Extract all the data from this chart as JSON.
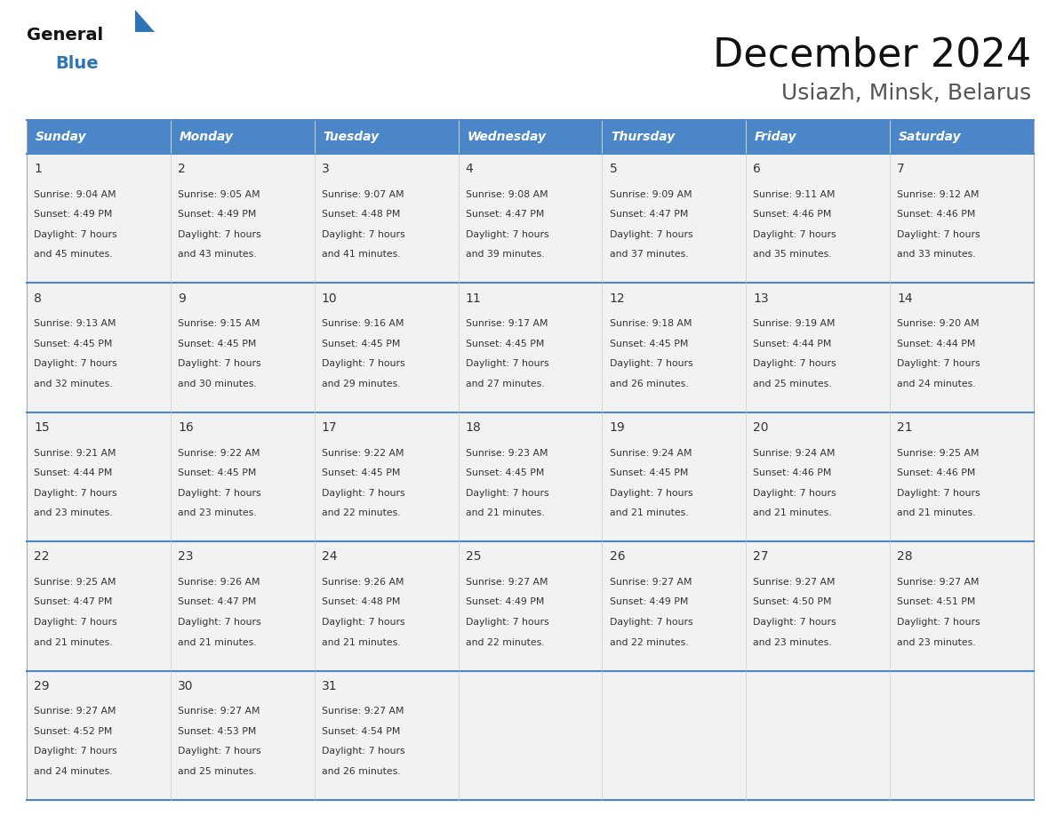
{
  "title": "December 2024",
  "subtitle": "Usiazh, Minsk, Belarus",
  "days_of_week": [
    "Sunday",
    "Monday",
    "Tuesday",
    "Wednesday",
    "Thursday",
    "Friday",
    "Saturday"
  ],
  "header_bg": "#4A86C8",
  "header_text": "#FFFFFF",
  "cell_bg_light": "#F2F2F2",
  "cell_bg_white": "#FFFFFF",
  "cell_border": "#AAAAAA",
  "day_num_color": "#333333",
  "info_text_color": "#333333",
  "title_color": "#111111",
  "subtitle_color": "#555555",
  "logo_general_color": "#111111",
  "logo_blue_color": "#2E75B6",
  "divider_color": "#4A86C8",
  "calendar_data": [
    [
      {
        "day": 1,
        "sunrise": "9:04 AM",
        "sunset": "4:49 PM",
        "daylight": "7 hours and 45 minutes."
      },
      {
        "day": 2,
        "sunrise": "9:05 AM",
        "sunset": "4:49 PM",
        "daylight": "7 hours and 43 minutes."
      },
      {
        "day": 3,
        "sunrise": "9:07 AM",
        "sunset": "4:48 PM",
        "daylight": "7 hours and 41 minutes."
      },
      {
        "day": 4,
        "sunrise": "9:08 AM",
        "sunset": "4:47 PM",
        "daylight": "7 hours and 39 minutes."
      },
      {
        "day": 5,
        "sunrise": "9:09 AM",
        "sunset": "4:47 PM",
        "daylight": "7 hours and 37 minutes."
      },
      {
        "day": 6,
        "sunrise": "9:11 AM",
        "sunset": "4:46 PM",
        "daylight": "7 hours and 35 minutes."
      },
      {
        "day": 7,
        "sunrise": "9:12 AM",
        "sunset": "4:46 PM",
        "daylight": "7 hours and 33 minutes."
      }
    ],
    [
      {
        "day": 8,
        "sunrise": "9:13 AM",
        "sunset": "4:45 PM",
        "daylight": "7 hours and 32 minutes."
      },
      {
        "day": 9,
        "sunrise": "9:15 AM",
        "sunset": "4:45 PM",
        "daylight": "7 hours and 30 minutes."
      },
      {
        "day": 10,
        "sunrise": "9:16 AM",
        "sunset": "4:45 PM",
        "daylight": "7 hours and 29 minutes."
      },
      {
        "day": 11,
        "sunrise": "9:17 AM",
        "sunset": "4:45 PM",
        "daylight": "7 hours and 27 minutes."
      },
      {
        "day": 12,
        "sunrise": "9:18 AM",
        "sunset": "4:45 PM",
        "daylight": "7 hours and 26 minutes."
      },
      {
        "day": 13,
        "sunrise": "9:19 AM",
        "sunset": "4:44 PM",
        "daylight": "7 hours and 25 minutes."
      },
      {
        "day": 14,
        "sunrise": "9:20 AM",
        "sunset": "4:44 PM",
        "daylight": "7 hours and 24 minutes."
      }
    ],
    [
      {
        "day": 15,
        "sunrise": "9:21 AM",
        "sunset": "4:44 PM",
        "daylight": "7 hours and 23 minutes."
      },
      {
        "day": 16,
        "sunrise": "9:22 AM",
        "sunset": "4:45 PM",
        "daylight": "7 hours and 23 minutes."
      },
      {
        "day": 17,
        "sunrise": "9:22 AM",
        "sunset": "4:45 PM",
        "daylight": "7 hours and 22 minutes."
      },
      {
        "day": 18,
        "sunrise": "9:23 AM",
        "sunset": "4:45 PM",
        "daylight": "7 hours and 21 minutes."
      },
      {
        "day": 19,
        "sunrise": "9:24 AM",
        "sunset": "4:45 PM",
        "daylight": "7 hours and 21 minutes."
      },
      {
        "day": 20,
        "sunrise": "9:24 AM",
        "sunset": "4:46 PM",
        "daylight": "7 hours and 21 minutes."
      },
      {
        "day": 21,
        "sunrise": "9:25 AM",
        "sunset": "4:46 PM",
        "daylight": "7 hours and 21 minutes."
      }
    ],
    [
      {
        "day": 22,
        "sunrise": "9:25 AM",
        "sunset": "4:47 PM",
        "daylight": "7 hours and 21 minutes."
      },
      {
        "day": 23,
        "sunrise": "9:26 AM",
        "sunset": "4:47 PM",
        "daylight": "7 hours and 21 minutes."
      },
      {
        "day": 24,
        "sunrise": "9:26 AM",
        "sunset": "4:48 PM",
        "daylight": "7 hours and 21 minutes."
      },
      {
        "day": 25,
        "sunrise": "9:27 AM",
        "sunset": "4:49 PM",
        "daylight": "7 hours and 22 minutes."
      },
      {
        "day": 26,
        "sunrise": "9:27 AM",
        "sunset": "4:49 PM",
        "daylight": "7 hours and 22 minutes."
      },
      {
        "day": 27,
        "sunrise": "9:27 AM",
        "sunset": "4:50 PM",
        "daylight": "7 hours and 23 minutes."
      },
      {
        "day": 28,
        "sunrise": "9:27 AM",
        "sunset": "4:51 PM",
        "daylight": "7 hours and 23 minutes."
      }
    ],
    [
      {
        "day": 29,
        "sunrise": "9:27 AM",
        "sunset": "4:52 PM",
        "daylight": "7 hours and 24 minutes."
      },
      {
        "day": 30,
        "sunrise": "9:27 AM",
        "sunset": "4:53 PM",
        "daylight": "7 hours and 25 minutes."
      },
      {
        "day": 31,
        "sunrise": "9:27 AM",
        "sunset": "4:54 PM",
        "daylight": "7 hours and 26 minutes."
      },
      null,
      null,
      null,
      null
    ]
  ],
  "figsize": [
    11.88,
    9.18
  ],
  "dpi": 100
}
